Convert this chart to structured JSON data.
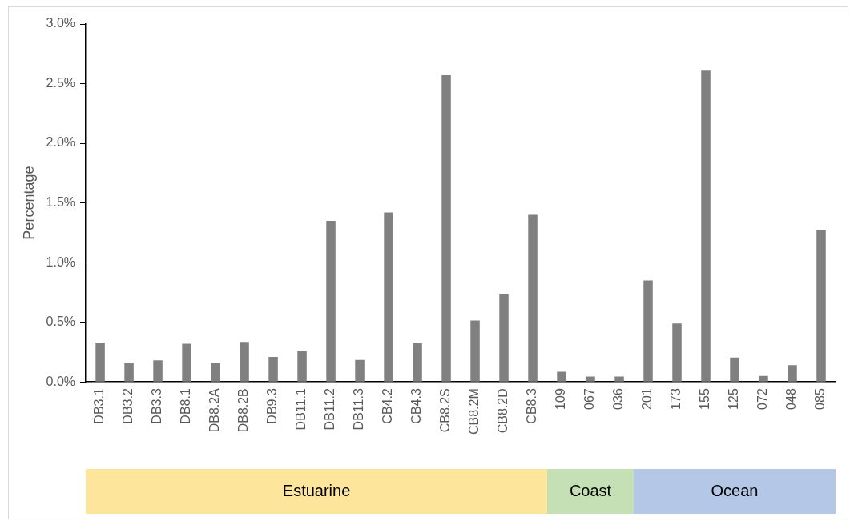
{
  "chart_data": {
    "type": "bar",
    "ylabel": "Percentage",
    "categories": [
      "DB3.1",
      "DB3.2",
      "DB3.3",
      "DB8.1",
      "DB8.2A",
      "DB8.2B",
      "DB9.3",
      "DB11.1",
      "DB11.2",
      "DB11.3",
      "CB4.2",
      "CB4.3",
      "CB8.2S",
      "CB8.2M",
      "CB8.2D",
      "CB8.3",
      "109",
      "067",
      "036",
      "201",
      "173",
      "155",
      "125",
      "072",
      "048",
      "085"
    ],
    "values": [
      0.33,
      0.16,
      0.18,
      0.32,
      0.16,
      0.335,
      0.21,
      0.26,
      1.35,
      0.185,
      1.42,
      0.325,
      2.57,
      0.515,
      0.74,
      1.4,
      0.085,
      0.045,
      0.045,
      0.85,
      0.49,
      2.61,
      0.205,
      0.05,
      0.14,
      1.275
    ],
    "color": "#808080",
    "ylim": [
      0,
      3
    ],
    "yticks": [
      {
        "value": 0,
        "label": "0.0%"
      },
      {
        "value": 0.5,
        "label": "0.5%"
      },
      {
        "value": 1,
        "label": "1.0%"
      },
      {
        "value": 1.5,
        "label": "1.5%"
      },
      {
        "value": 2,
        "label": "2.0%"
      },
      {
        "value": 2.5,
        "label": "2.5%"
      },
      {
        "value": 3,
        "label": "3.0%"
      }
    ],
    "grid": false,
    "legend": false,
    "annotations": [
      "Estuarine",
      "Coast",
      "Ocean"
    ]
  }
}
